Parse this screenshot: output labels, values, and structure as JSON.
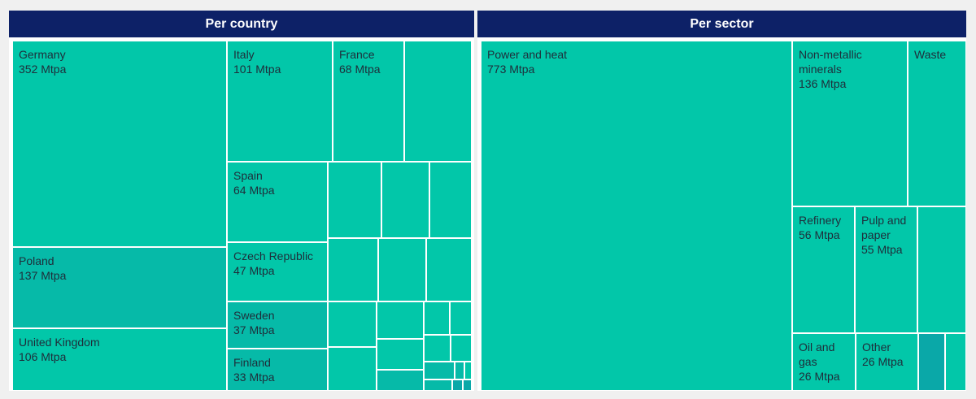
{
  "colors": {
    "header_bg": "#0d2167",
    "tile_main": "#02c7a9",
    "tile_mid": "#06baa8",
    "tile_dark": "#0aa8a8"
  },
  "unit": "Mtpa",
  "panels": [
    {
      "title": "Per country"
    },
    {
      "title": "Per sector"
    }
  ],
  "chart_data": [
    {
      "type": "treemap",
      "title": "Per country",
      "unit": "Mtpa",
      "items": [
        {
          "label": "Germany",
          "value": 352,
          "text": "352 Mtpa"
        },
        {
          "label": "Poland",
          "value": 137,
          "text": "137 Mtpa"
        },
        {
          "label": "United Kingdom",
          "value": 106,
          "text": "106 Mtpa"
        },
        {
          "label": "Italy",
          "value": 101,
          "text": "101 Mtpa"
        },
        {
          "label": "France",
          "value": 68,
          "text": "68 Mtpa"
        },
        {
          "label": "Spain",
          "value": 64,
          "text": "64 Mtpa"
        },
        {
          "label": "Czech Republic",
          "value": 47,
          "text": "47 Mtpa"
        },
        {
          "label": "Sweden",
          "value": 37,
          "text": "37 Mtpa"
        },
        {
          "label": "Finland",
          "value": 33,
          "text": "33 Mtpa"
        }
      ]
    },
    {
      "type": "treemap",
      "title": "Per sector",
      "unit": "Mtpa",
      "items": [
        {
          "label": "Power and heat",
          "value": 773,
          "text": "773 Mtpa"
        },
        {
          "label": "Non-metallic minerals",
          "value": 136,
          "text": "136 Mtpa"
        },
        {
          "label": "Waste",
          "value": null,
          "text": ""
        },
        {
          "label": "Refinery",
          "value": 56,
          "text": "56 Mtpa"
        },
        {
          "label": "Pulp and paper",
          "value": 55,
          "text": "55 Mtpa"
        },
        {
          "label": "Oil and gas",
          "value": 26,
          "text": "26 Mtpa"
        },
        {
          "label": "Other",
          "value": 26,
          "text": "26 Mtpa"
        }
      ]
    }
  ]
}
